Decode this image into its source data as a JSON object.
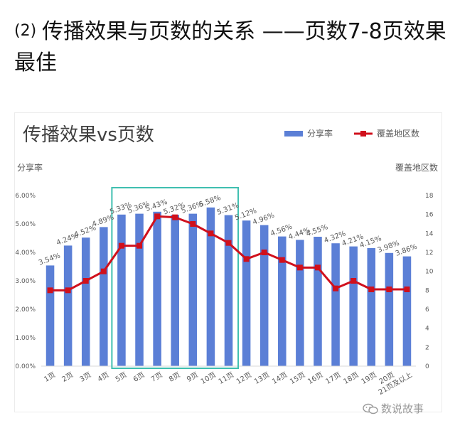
{
  "page": {
    "heading_num": "(2)",
    "heading_text": "传播效果与页数的关系 ——页数7-8页效果最佳"
  },
  "watermark": {
    "text": "数说故事",
    "icon": "wechat-bubble-icon"
  },
  "chart_data": {
    "type": "bar",
    "title": "传播效果vs页数",
    "categories": [
      "1页",
      "2页",
      "3页",
      "4页",
      "5页",
      "6页",
      "7页",
      "8页",
      "9页",
      "10页",
      "11页",
      "12页",
      "13页",
      "14页",
      "15页",
      "16页",
      "17页",
      "18页",
      "19页",
      "20页",
      "21页及以上"
    ],
    "series": [
      {
        "name": "分享率",
        "type": "bar",
        "axis": "left",
        "values": [
          3.54,
          4.24,
          4.52,
          4.89,
          5.33,
          5.36,
          5.43,
          5.32,
          5.36,
          5.58,
          5.31,
          5.12,
          4.96,
          4.56,
          4.44,
          4.55,
          4.32,
          4.21,
          4.15,
          3.98,
          3.86
        ],
        "labels": [
          "3.54%",
          "4.24%",
          "4.52%",
          "4.89%",
          "5.33%",
          "5.36%",
          "5.43%",
          "5.32%",
          "5.36%",
          "5.58%",
          "5.31%",
          "5.12%",
          "4.96%",
          "4.56%",
          "4.44%",
          "4.55%",
          "4.32%",
          "4.21%",
          "4.15%",
          "3.98%",
          "3.86%"
        ]
      },
      {
        "name": "覆盖地区数",
        "type": "line",
        "axis": "right",
        "values": [
          8,
          8,
          9,
          10,
          12.7,
          12.7,
          15.8,
          15.7,
          15,
          14,
          13,
          11.3,
          12,
          11.2,
          10.4,
          10.4,
          8.2,
          9,
          8.1,
          8.1,
          8.1
        ]
      }
    ],
    "ylabel_left": "分享率",
    "ylabel_right": "覆盖地区数",
    "ylim_left": [
      0,
      6
    ],
    "ylim_right": [
      0,
      18
    ],
    "yticks_left": [
      "0.00%",
      "1.00%",
      "2.00%",
      "3.00%",
      "4.00%",
      "5.00%",
      "6.00%"
    ],
    "yticks_right": [
      "0",
      "2",
      "4",
      "6",
      "8",
      "10",
      "12",
      "14",
      "16",
      "18"
    ],
    "highlight_range": [
      "5页",
      "11页"
    ],
    "legend": "top-right",
    "grid": false,
    "colors": {
      "bar": "#5b7fd6",
      "line": "#d0101c",
      "highlight": "#3fbfb0",
      "text": "#595959"
    }
  }
}
